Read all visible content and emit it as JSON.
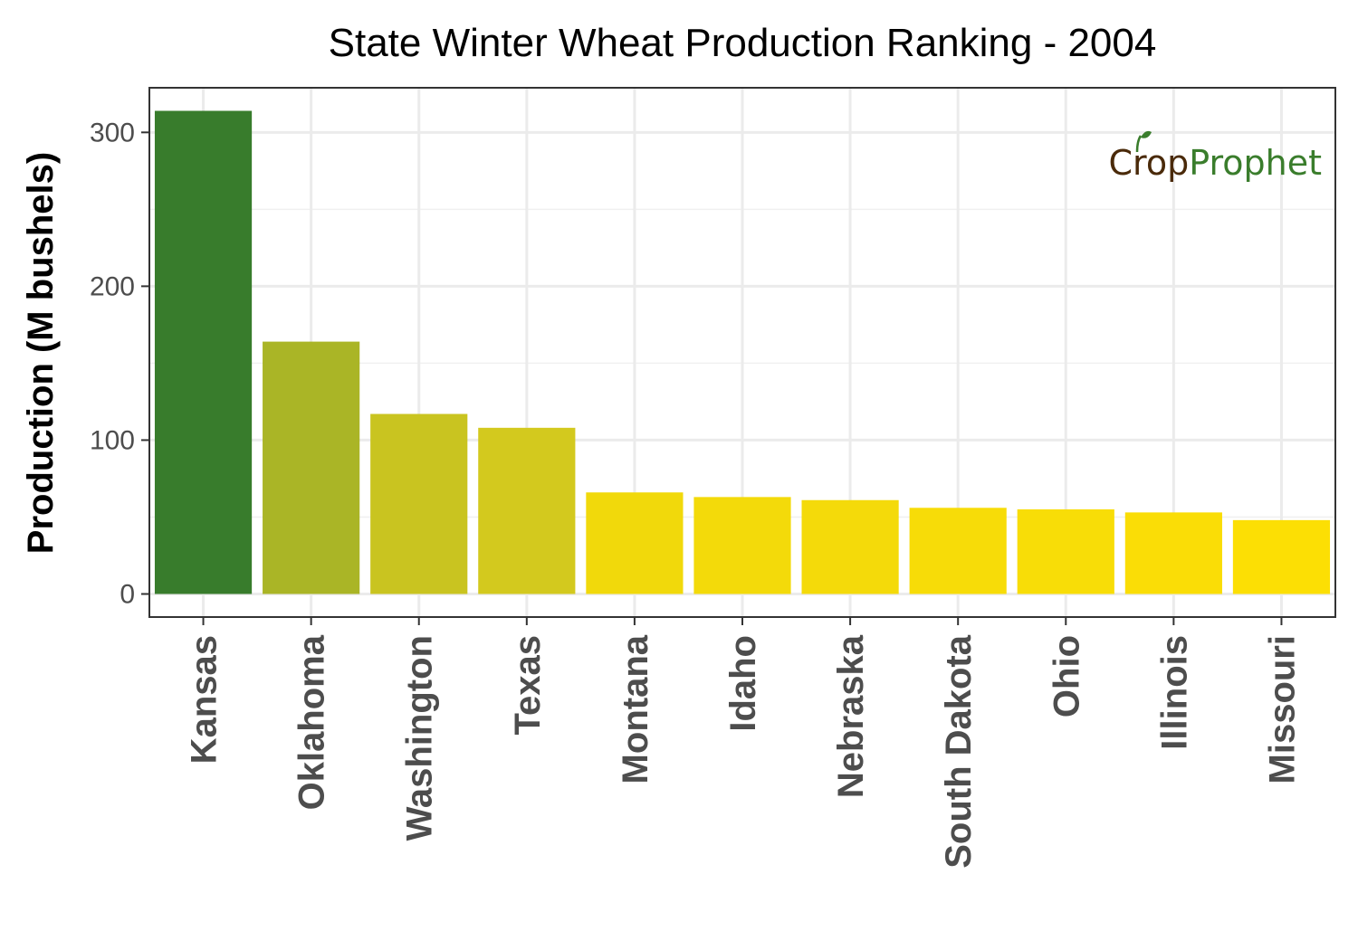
{
  "chart_data": {
    "type": "bar",
    "title": "State Winter Wheat Production Ranking - 2004",
    "xlabel": "",
    "ylabel": "Production (M bushels)",
    "categories": [
      "Kansas",
      "Oklahoma",
      "Washington",
      "Texas",
      "Montana",
      "Idaho",
      "Nebraska",
      "South Dakota",
      "Ohio",
      "Illinois",
      "Missouri"
    ],
    "values": [
      314,
      164,
      117,
      108,
      66,
      63,
      61,
      56,
      55,
      53,
      48
    ],
    "colors": [
      "#387c2c",
      "#aab526",
      "#c9c420",
      "#d3c91e",
      "#f1d90b",
      "#f3da0a",
      "#f4da0a",
      "#f7dc08",
      "#f8dd07",
      "#fadd06",
      "#fcdf04"
    ],
    "ylim": [
      -15,
      329
    ],
    "yticks": [
      0,
      100,
      200,
      300
    ],
    "grid": true,
    "legend": "none"
  },
  "logo": {
    "part1": "Crop",
    "part2": "Prophet",
    "color1": "#4a2a0a",
    "color2": "#3a7d2c"
  }
}
